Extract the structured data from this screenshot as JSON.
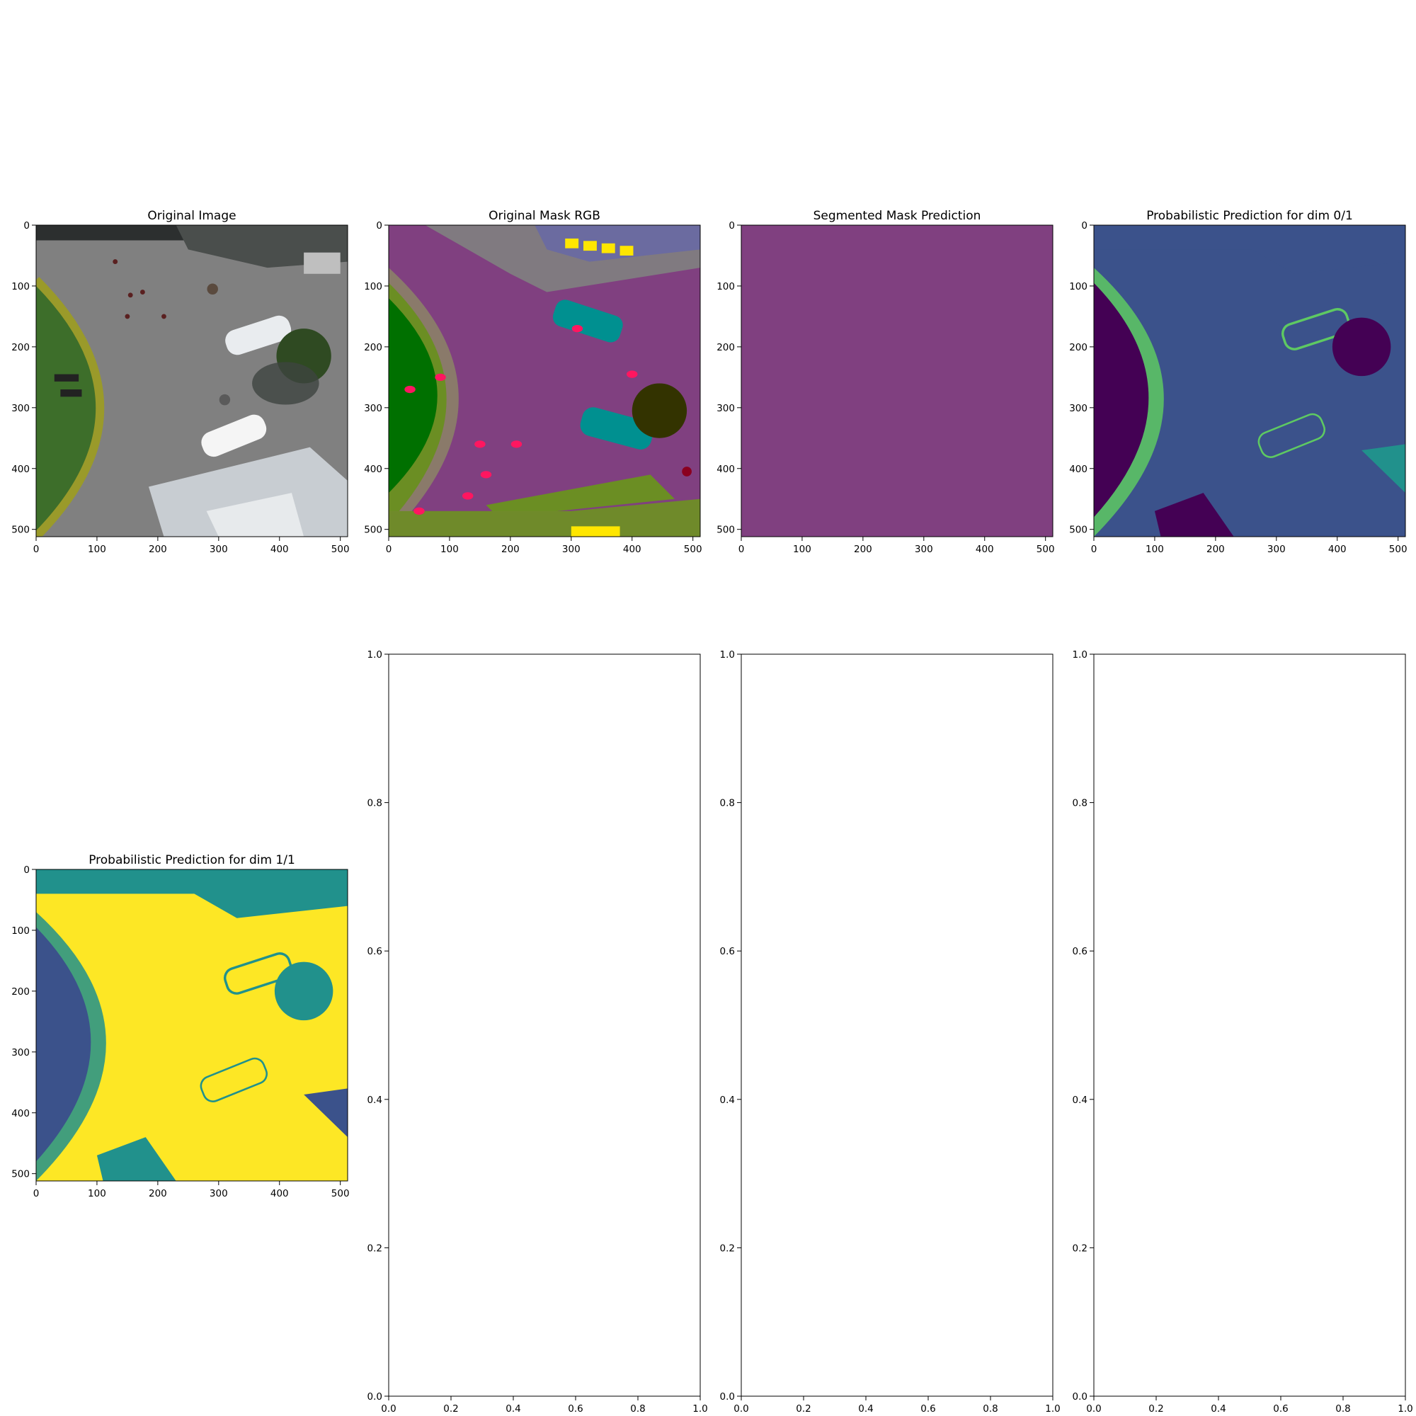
{
  "figure": {
    "panels": [
      {
        "title": "Original Image",
        "kind": "image",
        "xticks": [
          "0",
          "100",
          "200",
          "300",
          "400",
          "500"
        ],
        "yticks": [
          "0",
          "100",
          "200",
          "300",
          "400",
          "500"
        ],
        "xmax": 512,
        "ymax": 512
      },
      {
        "title": "Original Mask RGB",
        "kind": "mask",
        "xticks": [
          "0",
          "100",
          "200",
          "300",
          "400",
          "500"
        ],
        "yticks": [
          "0",
          "100",
          "200",
          "300",
          "400",
          "500"
        ],
        "xmax": 512,
        "ymax": 512
      },
      {
        "title": "Segmented Mask Prediction",
        "kind": "flat",
        "xticks": [
          "0",
          "100",
          "200",
          "300",
          "400",
          "500"
        ],
        "yticks": [
          "0",
          "100",
          "200",
          "300",
          "400",
          "500"
        ],
        "xmax": 512,
        "ymax": 512
      },
      {
        "title": "Probabilistic Prediction for dim 0/1",
        "kind": "prob0",
        "xticks": [
          "0",
          "100",
          "200",
          "300",
          "400",
          "500"
        ],
        "yticks": [
          "0",
          "100",
          "200",
          "300",
          "400",
          "500"
        ],
        "xmax": 512,
        "ymax": 512
      },
      {
        "title": "Probabilistic Prediction for dim 1/1",
        "kind": "prob1",
        "xticks": [
          "0",
          "100",
          "200",
          "300",
          "400",
          "500"
        ],
        "yticks": [
          "0",
          "100",
          "200",
          "300",
          "400",
          "500"
        ],
        "xmax": 512,
        "ymax": 512
      },
      {
        "title": "",
        "kind": "empty",
        "xticks": [
          "0.0",
          "0.2",
          "0.4",
          "0.6",
          "0.8",
          "1.0"
        ],
        "yticks": [
          "0.0",
          "0.2",
          "0.4",
          "0.6",
          "0.8",
          "1.0"
        ]
      },
      {
        "title": "",
        "kind": "empty",
        "xticks": [
          "0.0",
          "0.2",
          "0.4",
          "0.6",
          "0.8",
          "1.0"
        ],
        "yticks": [
          "0.0",
          "0.2",
          "0.4",
          "0.6",
          "0.8",
          "1.0"
        ]
      },
      {
        "title": "",
        "kind": "empty",
        "xticks": [
          "0.0",
          "0.2",
          "0.4",
          "0.6",
          "0.8",
          "1.0"
        ],
        "yticks": [
          "0.0",
          "0.2",
          "0.4",
          "0.6",
          "0.8",
          "1.0"
        ]
      }
    ],
    "colors": {
      "road": "#808080",
      "grass": "#3d6e2a",
      "mask_purple": "#804080",
      "mask_green": "#007000",
      "mask_olive": "#6b8e23",
      "mask_teal": "#009090",
      "mask_yellow": "#ffe600",
      "mask_pink": "#ff1660",
      "mask_dark": "#333300",
      "prediction_purple": "#804080",
      "viridis_dark": "#440154",
      "viridis_mid": "#3b528b",
      "viridis_teal": "#21918c",
      "viridis_green": "#5ec962",
      "viridis_yellow": "#fde725"
    }
  }
}
